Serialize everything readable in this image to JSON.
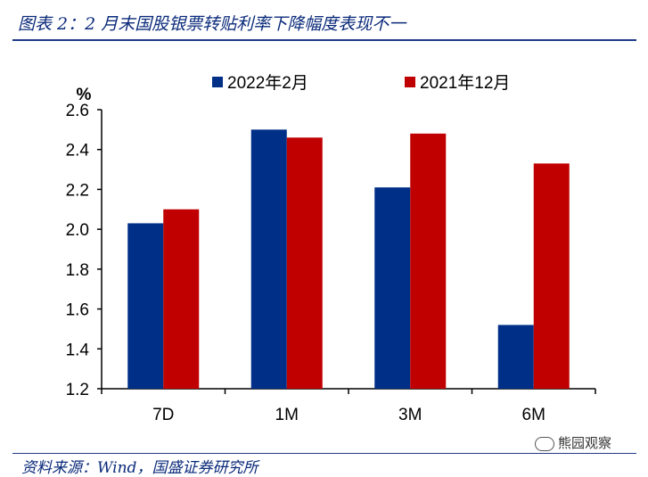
{
  "title": "图表 2：2 月末国股银票转贴利率下降幅度表现不一",
  "source": "资料来源：Wind，国盛证券研究所",
  "watermark": "熊园观察",
  "colors": {
    "series_2022_02": "#002f87",
    "series_2021_12": "#c00000",
    "axis": "#000000",
    "accent": "#0a2a7a"
  },
  "chart_data": {
    "type": "bar",
    "unit_label": "%",
    "categories": [
      "7D",
      "1M",
      "3M",
      "6M"
    ],
    "series": [
      {
        "name": "2022年2月",
        "values": [
          2.03,
          2.5,
          2.21,
          1.52
        ]
      },
      {
        "name": "2021年12月",
        "values": [
          2.1,
          2.46,
          2.48,
          2.33
        ]
      }
    ],
    "ylim": [
      1.2,
      2.6
    ],
    "yticks": [
      "1.2",
      "1.4",
      "1.6",
      "1.8",
      "2.0",
      "2.2",
      "2.4",
      "2.6"
    ],
    "grid": false,
    "legend_position": "top"
  }
}
